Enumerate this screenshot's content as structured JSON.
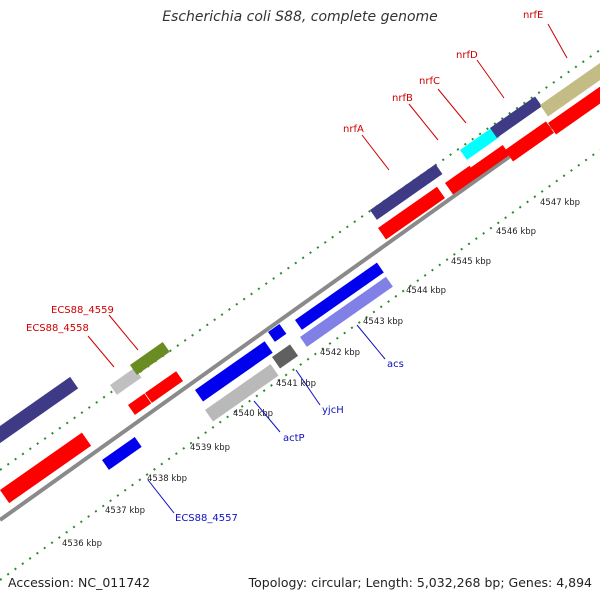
{
  "title": "Escherichia coli S88, complete genome",
  "footer": {
    "accession": "Accession: NC_011742",
    "summary": "Topology: circular; Length: 5,032,268 bp; Genes: 4,894"
  },
  "colors": {
    "background": "#ffffff",
    "backbone": "#8a8a8a",
    "tick": "#2e8b2e",
    "forward_cds": "#ff0000",
    "reverse_dark": "#3f3a86",
    "blue_cds": "#0000ee",
    "light_blue_cds": "#8080e6",
    "gray_cds": "#b9b9b9",
    "olive_cds": "#6b8b23",
    "khaki_cds": "#c4bc85",
    "cyan_cds": "#00ffff",
    "label_red": "#d00000",
    "label_blue": "#1010c0"
  },
  "ticks": [
    "4536 kbp",
    "4537 kbp",
    "4538 kbp",
    "4539 kbp",
    "4540 kbp",
    "4541 kbp",
    "4542 kbp",
    "4543 kbp",
    "4544 kbp",
    "4545 kbp",
    "4546 kbp",
    "4547 kbp"
  ],
  "gene_labels": {
    "top": [
      "nrfE",
      "nrfD",
      "nrfC",
      "nrfB",
      "nrfA",
      "ECS88_4559",
      "ECS88_4558"
    ],
    "bottom": [
      "acs",
      "yjcH",
      "actP",
      "ECS88_4557"
    ]
  }
}
